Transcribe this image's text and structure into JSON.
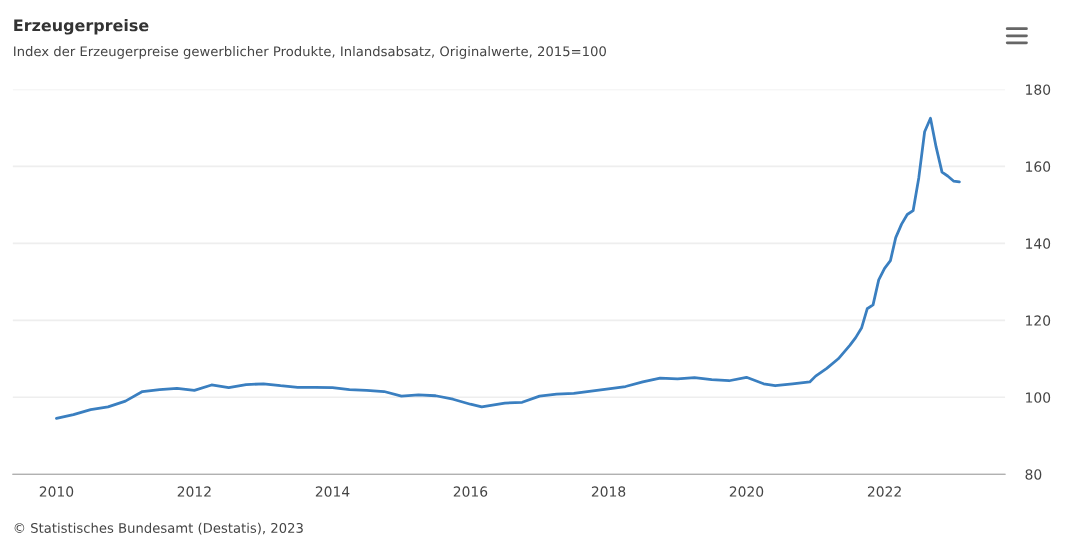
{
  "chart_data": {
    "type": "line",
    "title": "Erzeugerpreise",
    "subtitle": "Index der Erzeugerpreise gewerblicher Produkte, Inlandsabsatz, Originalwerte, 2015=100",
    "x": [
      "2010-01",
      "2010-04",
      "2010-07",
      "2010-10",
      "2011-01",
      "2011-04",
      "2011-07",
      "2011-10",
      "2012-01",
      "2012-04",
      "2012-07",
      "2012-10",
      "2013-01",
      "2013-04",
      "2013-07",
      "2013-10",
      "2014-01",
      "2014-04",
      "2014-07",
      "2014-10",
      "2015-01",
      "2015-04",
      "2015-07",
      "2015-10",
      "2016-01",
      "2016-03",
      "2016-07",
      "2016-10",
      "2017-01",
      "2017-04",
      "2017-07",
      "2017-10",
      "2018-01",
      "2018-04",
      "2018-07",
      "2018-10",
      "2019-01",
      "2019-04",
      "2019-07",
      "2019-10",
      "2020-01",
      "2020-04",
      "2020-06",
      "2020-09",
      "2020-12",
      "2021-01",
      "2021-03",
      "2021-05",
      "2021-07",
      "2021-08",
      "2021-09",
      "2021-10",
      "2021-11",
      "2021-12",
      "2022-01",
      "2022-02",
      "2022-03",
      "2022-04",
      "2022-05",
      "2022-06",
      "2022-07",
      "2022-08",
      "2022-09",
      "2022-10",
      "2022-11",
      "2022-12",
      "2023-01",
      "2023-02"
    ],
    "series": [
      {
        "color": "#3a7fc0",
        "values": [
          94.5,
          95.5,
          96.8,
          97.5,
          99,
          101.5,
          102,
          102.3,
          101.8,
          103.2,
          102.5,
          103.3,
          103.5,
          103,
          102.6,
          102.6,
          102.5,
          102,
          101.8,
          101.5,
          100.3,
          100.6,
          100.4,
          99.5,
          98.2,
          97.5,
          98.5,
          98.7,
          100.3,
          100.8,
          101,
          101.6,
          102.2,
          102.8,
          104,
          105,
          104.8,
          105.1,
          104.6,
          104.3,
          105.2,
          103.5,
          103,
          103.5,
          104,
          105.5,
          107.5,
          110,
          113.5,
          115.5,
          118,
          123,
          124,
          130.5,
          133.5,
          135.5,
          141.5,
          145,
          147.5,
          148.5,
          157,
          169,
          172.5,
          165,
          158.5,
          157.5,
          156.2,
          156
        ]
      }
    ],
    "xlim": [
      "2009-05-15",
      "2023-10-01"
    ],
    "xticks": [
      {
        "value": "2010",
        "label": "2010"
      },
      {
        "value": "2012",
        "label": "2012"
      },
      {
        "value": "2014",
        "label": "2014"
      },
      {
        "value": "2016",
        "label": "2016"
      },
      {
        "value": "2018",
        "label": "2018"
      },
      {
        "value": "2020",
        "label": "2020"
      },
      {
        "value": "2022",
        "label": "2022"
      }
    ],
    "ylim": [
      80,
      180
    ],
    "yticks": [
      80,
      100,
      120,
      140,
      160,
      180
    ],
    "grid": "y",
    "line_style": "solid",
    "marker": "none",
    "annotations": [
      "© Statistisches Bundesamt (Destatis), 2023"
    ]
  }
}
